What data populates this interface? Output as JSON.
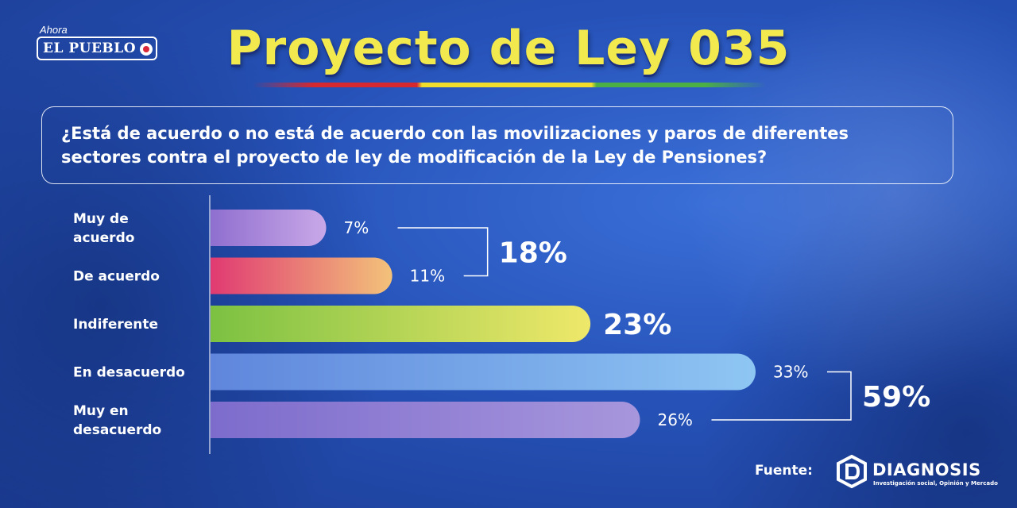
{
  "logo": {
    "ahora": "Ahora",
    "name": "EL PUEBLO"
  },
  "title": "Proyecto de Ley 035",
  "question": "¿Está de acuerdo o no está de acuerdo con las movilizaciones y paros de diferentes sectores contra el proyecto de ley de modificación de la Ley de Pensiones?",
  "source": {
    "label": "Fuente:",
    "name": "DIAGNOSIS",
    "tagline": "Investigación social, Opinión y Mercado"
  },
  "chart_data": {
    "type": "bar",
    "orientation": "horizontal",
    "categories": [
      "Muy de acuerdo",
      "De acuerdo",
      "Indiferente",
      "En desacuerdo",
      "Muy en desacuerdo"
    ],
    "category_lines": [
      [
        "Muy de",
        "acuerdo"
      ],
      [
        "De acuerdo"
      ],
      [
        "Indiferente"
      ],
      [
        "En desacuerdo"
      ],
      [
        "Muy en",
        "desacuerdo"
      ]
    ],
    "values": [
      7,
      11,
      23,
      33,
      26
    ],
    "value_labels": [
      "7%",
      "11%",
      "23%",
      "33%",
      "26%"
    ],
    "xlim": [
      0,
      40
    ],
    "groups": [
      {
        "label": "18%",
        "value": 18,
        "members": [
          0,
          1
        ]
      },
      {
        "label": "59%",
        "value": 59,
        "members": [
          3,
          4
        ]
      }
    ],
    "colors": [
      [
        "#8f6fcf",
        "#c9a8e8"
      ],
      [
        "#e03a72",
        "#f3c27a"
      ],
      [
        "#7cc142",
        "#efe86a"
      ],
      [
        "#5f86dc",
        "#8ec6f3"
      ],
      [
        "#7d6ccc",
        "#a796dc"
      ]
    ]
  }
}
